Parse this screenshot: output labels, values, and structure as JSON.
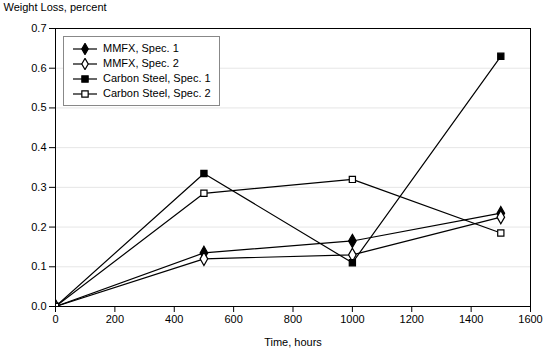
{
  "chart_data": {
    "type": "line",
    "xlabel": "Time, hours",
    "ylabel": "Weight Loss, percent",
    "x": [
      0,
      500,
      1000,
      1500
    ],
    "series": [
      {
        "name": "MMFX, Spec. 1",
        "color": "#000000",
        "marker": "diamond",
        "values": [
          0.0,
          0.135,
          0.165,
          0.235
        ]
      },
      {
        "name": "MMFX, Spec. 2",
        "color": "#000000",
        "marker": "diamond-open",
        "values": [
          0.0,
          0.12,
          0.13,
          0.225
        ]
      },
      {
        "name": "Carbon Steel, Spec. 1",
        "color": "#000000",
        "marker": "square",
        "values": [
          0.0,
          0.335,
          0.11,
          0.63
        ]
      },
      {
        "name": "Carbon Steel, Spec. 2",
        "color": "#000000",
        "marker": "square-open",
        "values": [
          0.0,
          0.285,
          0.32,
          0.185
        ]
      }
    ],
    "xlim": [
      0,
      1600
    ],
    "ylim": [
      0,
      0.7
    ],
    "xticks": [
      0,
      200,
      400,
      600,
      800,
      1000,
      1200,
      1400,
      1600
    ],
    "yticks": [
      {
        "value": 0,
        "label": "0.0"
      },
      0.1,
      0.2,
      0.3,
      0.4,
      0.5,
      0.6,
      0.7
    ],
    "grid": true,
    "legend": "upper left"
  }
}
